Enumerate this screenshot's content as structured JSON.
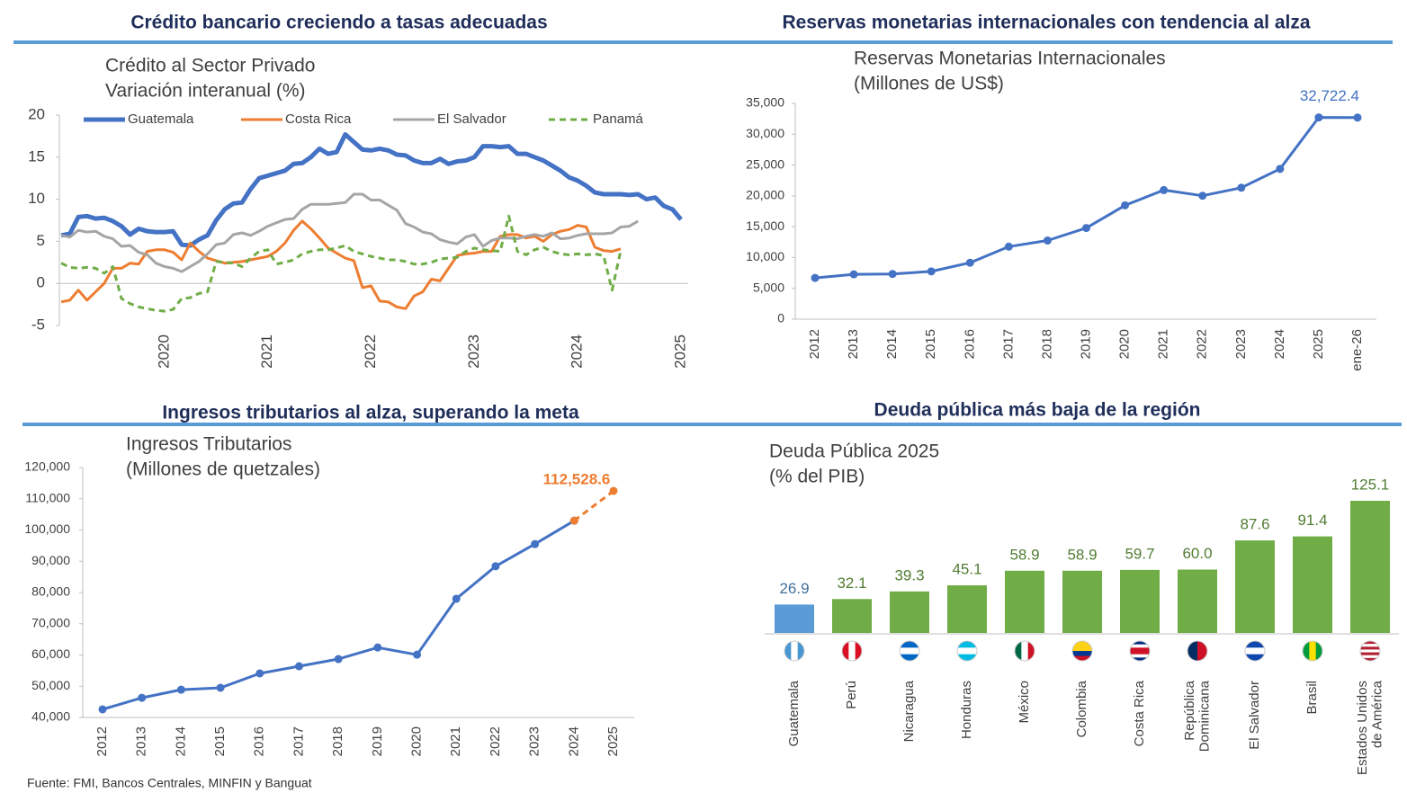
{
  "headings": [
    "Crédito bancario creciendo a tasas adecuadas",
    "Reservas monetarias internacionales con tendencia al alza",
    "Ingresos tributarios al alza, superando la meta",
    "Deuda pública más baja de la región"
  ],
  "source": "Fuente: FMI, Bancos Centrales, MINFIN y Banguat",
  "chart_data": [
    {
      "type": "line",
      "title": "Crédito al Sector Privado",
      "subtitle": "Variación interanual (%)",
      "categories": [
        null,
        null,
        null,
        null,
        null,
        null,
        null,
        null,
        null,
        null,
        null,
        null,
        "2020",
        null,
        null,
        null,
        null,
        null,
        null,
        null,
        null,
        null,
        null,
        null,
        "2021",
        null,
        null,
        null,
        null,
        null,
        null,
        null,
        null,
        null,
        null,
        null,
        "2022",
        null,
        null,
        null,
        null,
        null,
        null,
        null,
        null,
        null,
        null,
        null,
        "2023",
        null,
        null,
        null,
        null,
        null,
        null,
        null,
        null,
        null,
        null,
        null,
        "2024",
        null,
        null,
        null,
        null,
        null,
        null,
        null,
        null,
        null,
        null,
        null,
        "2025"
      ],
      "series": [
        {
          "name": "Guatemala",
          "color": "#4472c4",
          "values": [
            5.7,
            5.9,
            7.9,
            8.0,
            7.7,
            7.8,
            7.4,
            6.8,
            5.8,
            6.5,
            6.2,
            6.1,
            6.1,
            6.2,
            4.6,
            4.5,
            5.2,
            5.7,
            7.5,
            8.8,
            9.5,
            9.6,
            11.2,
            12.5,
            12.8,
            13.1,
            13.4,
            14.2,
            14.3,
            15.0,
            16.0,
            15.4,
            15.6,
            17.7,
            16.8,
            15.9,
            15.8,
            16.0,
            15.8,
            15.3,
            15.2,
            14.6,
            14.3,
            14.3,
            14.8,
            14.2,
            14.5,
            14.6,
            15.0,
            16.3,
            16.3,
            16.2,
            16.3,
            15.4,
            15.4,
            15.0,
            14.6,
            14.0,
            13.4,
            12.6,
            12.2,
            11.6,
            10.8,
            10.6,
            10.6,
            10.6,
            10.5,
            10.6,
            10.0,
            10.2,
            9.2,
            8.8,
            7.6
          ]
        },
        {
          "name": "Costa Rica",
          "color": "#ed7d31",
          "values": [
            -2.2,
            -2.0,
            -0.8,
            -2.0,
            -1.0,
            0.0,
            1.8,
            1.8,
            2.4,
            2.3,
            3.8,
            4.0,
            4.0,
            3.7,
            2.8,
            4.8,
            3.8,
            3.0,
            2.7,
            2.4,
            2.5,
            2.6,
            2.8,
            3.0,
            3.2,
            3.8,
            4.8,
            6.3,
            7.4,
            6.5,
            5.4,
            4.2,
            3.6,
            3.0,
            2.7,
            -0.5,
            -0.3,
            -2.1,
            -2.2,
            -2.8,
            -3.0,
            -1.5,
            -1.0,
            0.5,
            0.3,
            1.8,
            3.3,
            3.5,
            3.6,
            3.8,
            3.8,
            5.6,
            5.8,
            5.8,
            5.4,
            5.6,
            5.0,
            5.8,
            6.2,
            6.4,
            6.9,
            6.7,
            4.3,
            3.9,
            3.8,
            4.1,
            null,
            null,
            null,
            null,
            null,
            null,
            null
          ]
        },
        {
          "name": "El Salvador",
          "color": "#a5a5a5",
          "values": [
            5.7,
            5.5,
            6.3,
            6.1,
            6.2,
            5.6,
            5.3,
            4.4,
            4.5,
            3.7,
            3.4,
            2.4,
            2.0,
            1.8,
            1.4,
            2.0,
            2.6,
            3.5,
            4.6,
            4.8,
            5.8,
            6.0,
            5.7,
            6.2,
            6.8,
            7.2,
            7.6,
            7.7,
            8.8,
            9.4,
            9.4,
            9.4,
            9.5,
            9.6,
            10.6,
            10.6,
            9.9,
            9.9,
            9.3,
            8.7,
            7.1,
            6.7,
            6.1,
            5.9,
            5.2,
            4.9,
            4.7,
            5.5,
            5.8,
            4.4,
            5.1,
            5.4,
            5.4,
            5.3,
            5.6,
            5.8,
            5.6,
            6.0,
            5.3,
            5.4,
            5.7,
            5.9,
            5.9,
            5.9,
            6.0,
            6.7,
            6.8,
            7.4,
            null,
            null,
            null,
            null,
            null
          ]
        },
        {
          "name": "Panamá",
          "color": "#70ad47",
          "dashed": true,
          "values": [
            2.4,
            1.9,
            1.8,
            1.9,
            1.8,
            1.2,
            2.0,
            -1.8,
            -2.4,
            -2.8,
            -3.0,
            -3.2,
            -3.3,
            -3.1,
            -1.8,
            -1.7,
            -1.2,
            -1.0,
            2.6,
            2.5,
            2.4,
            2.0,
            3.0,
            3.8,
            4.0,
            2.3,
            2.5,
            2.8,
            3.5,
            3.8,
            4.0,
            4.0,
            4.2,
            4.5,
            3.8,
            3.5,
            3.2,
            3.0,
            2.8,
            2.8,
            2.6,
            2.3,
            2.3,
            2.5,
            2.9,
            3.0,
            3.1,
            3.8,
            4.2,
            4.0,
            3.9,
            3.8,
            8.0,
            3.8,
            3.4,
            4.0,
            4.3,
            3.8,
            3.5,
            3.4,
            3.5,
            3.4,
            3.5,
            3.3,
            -0.8,
            3.9,
            null,
            null,
            null,
            null,
            null,
            null,
            null
          ]
        }
      ],
      "ylim": [
        -5,
        20
      ],
      "yticks": [
        -5,
        0,
        5,
        10,
        15,
        20
      ],
      "legend": "top",
      "markers": false
    },
    {
      "type": "line",
      "title": "Reservas Monetarias Internacionales",
      "subtitle": "(Millones de US$)",
      "categories": [
        "2012",
        "2013",
        "2014",
        "2015",
        "2016",
        "2017",
        "2018",
        "2019",
        "2020",
        "2021",
        "2022",
        "2023",
        "2024",
        "2025",
        "ene-26"
      ],
      "series": [
        {
          "color": "#4472c4",
          "values": [
            6694,
            7273,
            7333,
            7751,
            9160,
            11770,
            12756,
            14789,
            18468,
            20939,
            20020,
            21327,
            24380,
            32722.4,
            32700
          ],
          "value_labels": [
            null,
            null,
            null,
            null,
            null,
            null,
            null,
            null,
            null,
            null,
            null,
            null,
            null,
            "32,722.4",
            null
          ]
        }
      ],
      "ylim": [
        0,
        35000
      ],
      "yticks": [
        0,
        {
          "value": 5000,
          "label": "5,000"
        },
        {
          "value": 10000,
          "label": "10,000"
        },
        {
          "value": 15000,
          "label": "15,000"
        },
        {
          "value": 20000,
          "label": "20,000"
        },
        {
          "value": 25000,
          "label": "25,000"
        },
        {
          "value": 30000,
          "label": "30,000"
        },
        {
          "value": 35000,
          "label": "35,000"
        }
      ],
      "markers": true
    },
    {
      "type": "line",
      "title": "Ingresos Tributarios",
      "subtitle": "(Millones de quetzales)",
      "categories": [
        "2012",
        "2013",
        "2014",
        "2015",
        "2016",
        "2017",
        "2018",
        "2019",
        "2020",
        "2021",
        "2022",
        "2023",
        "2024",
        "2025"
      ],
      "series": [
        {
          "color": "#4472c4",
          "values": [
            42600,
            46300,
            48900,
            49500,
            54100,
            56400,
            58700,
            62400,
            60100,
            78000,
            88400,
            95500,
            103000,
            null
          ]
        },
        {
          "color": "#ed7d31",
          "dashed": true,
          "values": [
            null,
            null,
            null,
            null,
            null,
            null,
            null,
            null,
            null,
            null,
            null,
            null,
            103000,
            112528.6
          ],
          "value_labels": [
            null,
            null,
            null,
            null,
            null,
            null,
            null,
            null,
            null,
            null,
            null,
            null,
            null,
            "112,528.6"
          ]
        }
      ],
      "ylim": [
        40000,
        120000
      ],
      "yticks": [
        {
          "value": 40000,
          "label": "40,000"
        },
        {
          "value": 50000,
          "label": "50,000"
        },
        {
          "value": 60000,
          "label": "60,000"
        },
        {
          "value": 70000,
          "label": "70,000"
        },
        {
          "value": 80000,
          "label": "80,000"
        },
        {
          "value": 90000,
          "label": "90,000"
        },
        {
          "value": 100000,
          "label": "100,000"
        },
        {
          "value": 110000,
          "label": "110,000"
        },
        {
          "value": 120000,
          "label": "120,000"
        }
      ],
      "markers": true
    },
    {
      "type": "bar",
      "title": "Deuda Pública 2025",
      "subtitle": "(% del PIB)",
      "categories": [
        "Guatemala",
        "Perú",
        "Nicaragua",
        "Honduras",
        "México",
        "Colombia",
        "Costa Rica",
        "República\nDominicana",
        "El Salvador",
        "Brasil",
        "Estados Unidos\nde América"
      ],
      "values": [
        26.9,
        32.1,
        39.3,
        45.1,
        58.9,
        58.9,
        59.7,
        60,
        87.6,
        91.4,
        125.1
      ],
      "value_labels": [
        null,
        null,
        null,
        null,
        null,
        null,
        null,
        "60.0",
        null,
        null,
        null
      ],
      "colors": [
        "#5b9bd5",
        "#70ad47",
        "#70ad47",
        "#70ad47",
        "#70ad47",
        "#70ad47",
        "#70ad47",
        "#70ad47",
        "#70ad47",
        "#70ad47",
        "#70ad47"
      ]
    }
  ]
}
